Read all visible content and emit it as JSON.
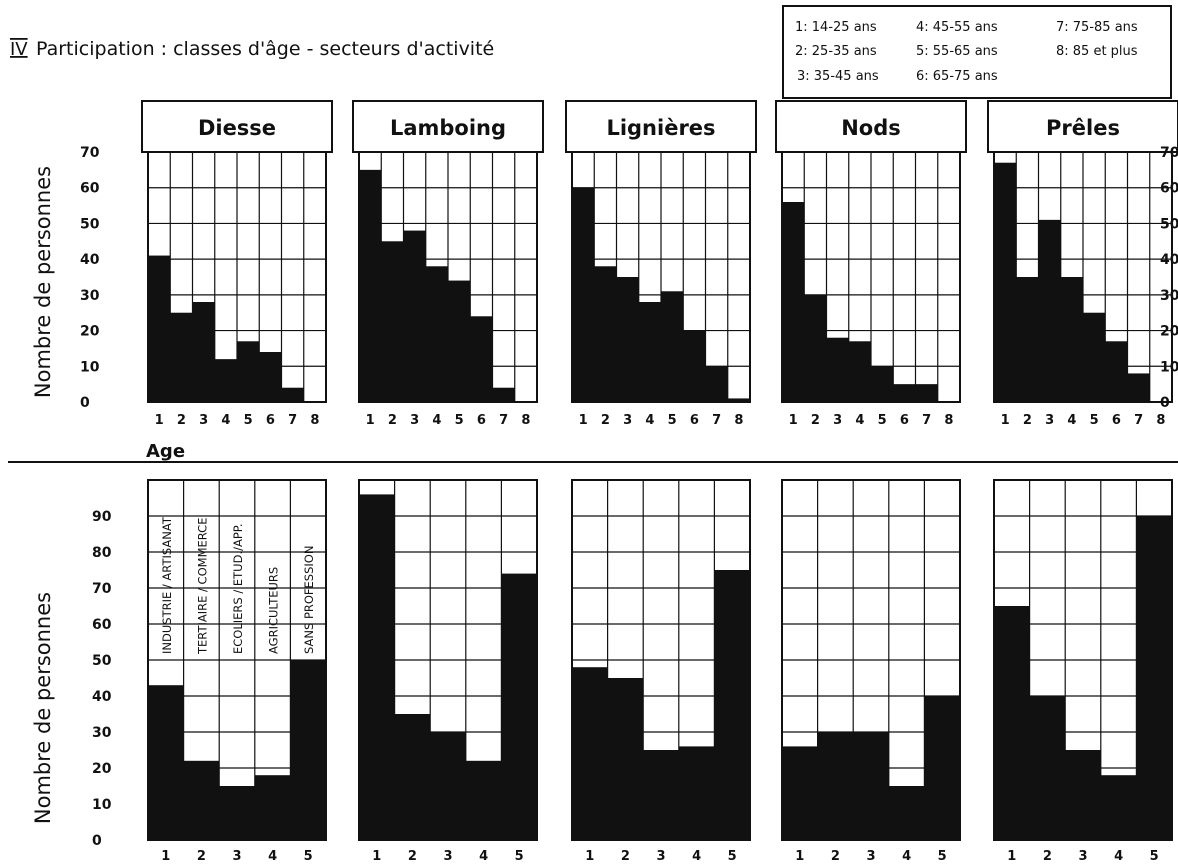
{
  "figure": {
    "roman": "IV",
    "title": "Participation : classes d'âge - secteurs d'activité",
    "legend": [
      "1: 14-25 ans",
      "4: 45-55 ans",
      "7: 75-85 ans",
      "2: 25-35 ans",
      "5: 55-65 ans",
      "8: 85 et plus",
      "3: 35-45 ans",
      "6: 65-75 ans"
    ],
    "age_label": "Age"
  },
  "chart_data": [
    {
      "type": "bar",
      "group": "age",
      "ylabel": "Nombre de personnes",
      "xlabel": "Age",
      "ylim": [
        0,
        70
      ],
      "yticks": [
        0,
        10,
        20,
        30,
        40,
        50,
        60,
        70
      ],
      "categories": [
        "1",
        "2",
        "3",
        "4",
        "5",
        "6",
        "7",
        "8"
      ],
      "grid": true,
      "panels": [
        {
          "title": "Diesse",
          "values": [
            41,
            25,
            28,
            12,
            17,
            14,
            4,
            0
          ]
        },
        {
          "title": "Lamboing",
          "values": [
            65,
            45,
            48,
            38,
            34,
            24,
            4,
            0
          ]
        },
        {
          "title": "Lignières",
          "values": [
            60,
            38,
            35,
            28,
            31,
            20,
            10,
            1
          ]
        },
        {
          "title": "Nods",
          "values": [
            56,
            30,
            18,
            17,
            10,
            5,
            5,
            0
          ]
        },
        {
          "title": "Prêles",
          "values": [
            67,
            35,
            51,
            35,
            25,
            17,
            8,
            0
          ]
        }
      ]
    },
    {
      "type": "bar",
      "group": "secteurs",
      "ylabel": "Nombre de personnes",
      "ylim": [
        0,
        100
      ],
      "yticks": [
        0,
        10,
        20,
        30,
        40,
        50,
        60,
        70,
        80,
        90
      ],
      "categories": [
        "1",
        "2",
        "3",
        "4",
        "5"
      ],
      "category_labels": [
        "INDUSTRIE / ARTISANAT",
        "TERTIAIRE / COMMERCE",
        "ECOLIERS / ETUD./APP.",
        "AGRICULTEURS",
        "SANS PROFESSION"
      ],
      "grid": true,
      "panels": [
        {
          "values": [
            43,
            22,
            15,
            18,
            50
          ]
        },
        {
          "values": [
            96,
            35,
            30,
            22,
            74
          ]
        },
        {
          "values": [
            48,
            45,
            25,
            26,
            75
          ]
        },
        {
          "values": [
            26,
            30,
            30,
            15,
            40
          ]
        },
        {
          "values": [
            65,
            40,
            25,
            18,
            90
          ]
        }
      ]
    }
  ]
}
